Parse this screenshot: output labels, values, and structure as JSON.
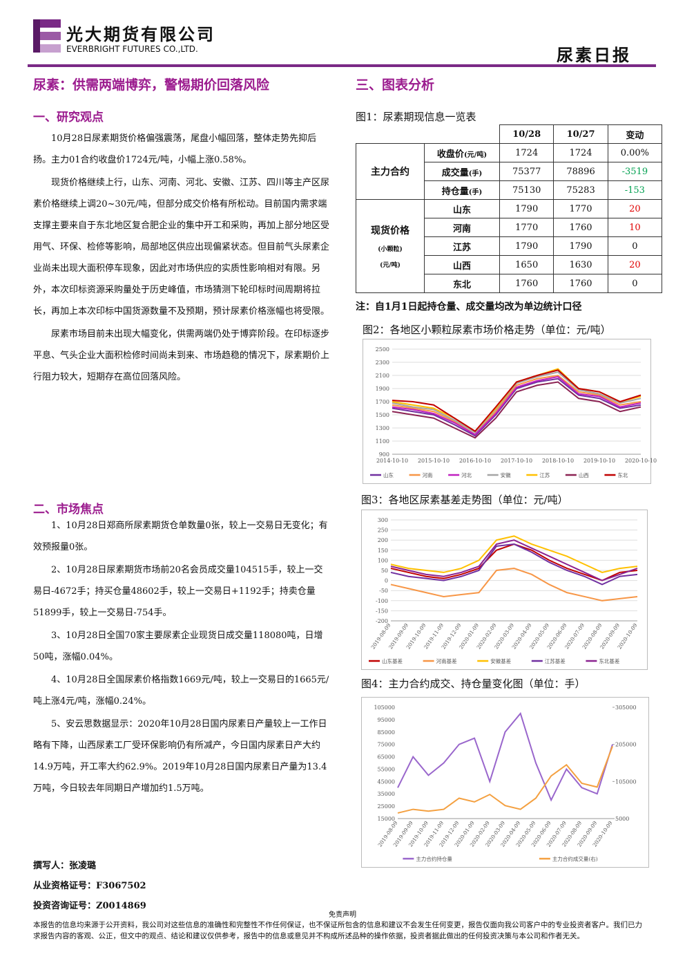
{
  "header": {
    "company_cn": "光大期货有限公司",
    "company_en": "EVERBRIGHT FUTURES CO.,LTD.",
    "report_name": "尿素日报"
  },
  "title": "尿素：供需两端博弈，警惕期价回落风险",
  "section3_title": "三、图表分析",
  "section1": {
    "heading": "一、研究观点",
    "paragraphs": [
      "10月28日尿素期货价格偏强震荡，尾盘小幅回落，整体走势先抑后扬。主力01合约收盘价1724元/吨，小幅上涨0.58%。",
      "现货价格继续上行，山东、河南、河北、安徽、江苏、四川等主产区尿素价格继续上调20~30元/吨，但部分成交价格有所松动。目前国内需求端支撑主要来自于东北地区复合肥企业的集中开工和采购，再加上部分地区受用气、环保、检修等影响，局部地区供应出现偏紧状态。但目前气头尿素企业尚未出现大面积停车现象，因此对市场供应的实质性影响相对有限。另外，本次印标资源采购量处于历史峰值，市场猜测下轮印标时间周期将拉长，再加上本次印标中国货源数量不及预期，预计尿素价格涨幅也将受限。",
      "尿素市场目前未出现大幅变化，供需两端仍处于博弈阶段。在印标逐步平息、气头企业大面积检修时间尚未到来、市场趋稳的情况下，尿素期价上行阻力较大，短期存在高位回落风险。"
    ]
  },
  "section2": {
    "heading": "二、市场焦点",
    "paragraphs": [
      "1、10月28日郑商所尿素期货仓单数量0张，较上一交易日无变化；有效预报量0张。",
      "2、10月28日尿素期货市场前20名会员成交量104515手，较上一交易日-4672手；持买仓量48602手，较上一交易日+1192手；持卖仓量51899手，较上一交易日-754手。",
      "3、10月28日全国70家主要尿素企业现货日成交量118080吨，日增50吨，涨幅0.04%。",
      "4、10月28日全国尿素价格指数1669元/吨，较上一交易日的1665元/吨上涨4元/吨，涨幅0.24%。",
      "5、安云思数据显示：2020年10月28日国内尿素日产量较上一工作日略有下降，山西尿素工厂受环保影响仍有所减产，今日国内尿素日产大约14.9万吨，开工率大约62.9%。2019年10月28日国内尿素日产量为13.4万吨，今日较去年同期日产增加约1.5万吨。"
    ]
  },
  "authors": [
    "撰写人：张凌璐",
    "从业资格证号：F3067502",
    "投资咨询证号：Z0014869"
  ],
  "table": {
    "caption": "图1：尿素期现信息一览表",
    "columns": [
      "10/28",
      "10/27",
      "变动"
    ],
    "groups": [
      {
        "label": "主力合约",
        "rows": [
          {
            "name": "收盘价",
            "unit": "(元/吨)",
            "values": [
              1724,
              1724
            ],
            "change": "0.00%"
          },
          {
            "name": "成交量",
            "unit": "(手)",
            "values": [
              75377,
              78896
            ],
            "change": -3519
          },
          {
            "name": "持仓量",
            "unit": "(手)",
            "values": [
              75130,
              75283
            ],
            "change": -153
          }
        ]
      },
      {
        "label": "现货价格",
        "notes": [
          "(小颗粒)",
          "(元/吨)"
        ],
        "rows": [
          {
            "name": "山东",
            "values": [
              1790,
              1770
            ],
            "change": 20
          },
          {
            "name": "河南",
            "values": [
              1770,
              1760
            ],
            "change": 10
          },
          {
            "name": "江苏",
            "values": [
              1790,
              1790
            ],
            "change": 0
          },
          {
            "name": "山西",
            "values": [
              1650,
              1630
            ],
            "change": 20
          },
          {
            "name": "东北",
            "values": [
              1760,
              1760
            ],
            "change": 0
          }
        ]
      }
    ],
    "note": "注：自1月1日起持仓量、成交量均改为单边统计口径"
  },
  "figures": [
    {
      "caption": "图2：各地区小颗粒尿素市场价格走势（单位：元/吨）",
      "chart": {
        "type": "line",
        "categories": [
          "2014-10-10",
          null,
          "2015-10-10",
          null,
          "2016-10-10",
          null,
          "2017-10-10",
          null,
          "2018-10-10",
          null,
          "2019-10-10",
          null,
          "2020-10-10"
        ],
        "ylim": [
          900,
          2500
        ],
        "yticks": [
          900,
          1100,
          1300,
          1500,
          1700,
          1900,
          2100,
          2300,
          2500
        ],
        "grid": true,
        "series": [
          {
            "name": "山东",
            "color": "#7030a0",
            "values": [
              1600,
              1550,
              1500,
              1350,
              1180,
              1500,
              1900,
              2000,
              2050,
              1800,
              1750,
              1600,
              1650
            ]
          },
          {
            "name": "河南",
            "color": "#f79646",
            "values": [
              1650,
              1600,
              1550,
              1400,
              1200,
              1550,
              1950,
              2050,
              2100,
              1850,
              1800,
              1650,
              1700
            ]
          },
          {
            "name": "河北",
            "color": "#c020c0",
            "values": [
              1620,
              1580,
              1520,
              1380,
              1200,
              1520,
              1920,
              2020,
              2080,
              1820,
              1780,
              1620,
              1680
            ]
          },
          {
            "name": "安徽",
            "color": "#a5a5a5",
            "values": [
              1680,
              1620,
              1580,
              1420,
              1230,
              1580,
              1980,
              2080,
              2150,
              1880,
              1820,
              1680,
              1750
            ]
          },
          {
            "name": "江苏",
            "color": "#ffc000",
            "values": [
              1700,
              1650,
              1600,
              1450,
              1250,
              1600,
              2000,
              2100,
              2200,
              1900,
              1850,
              1700,
              1780
            ]
          },
          {
            "name": "山西",
            "color": "#8b2252",
            "values": [
              1550,
              1500,
              1450,
              1300,
              1150,
              1450,
              1850,
              1950,
              2000,
              1750,
              1700,
              1550,
              1620
            ]
          },
          {
            "name": "东北",
            "color": "#c00000",
            "values": [
              1720,
              1700,
              1650,
              1450,
              1250,
              1620,
              2000,
              2100,
              2180,
              1900,
              1850,
              1700,
              1800
            ]
          }
        ]
      }
    },
    {
      "caption": "图3：各地区尿素基差走势图（单位：元/吨）",
      "chart": {
        "type": "line",
        "rotate_x_labels": true,
        "categories": [
          "2019-08-09",
          "2019-09-09",
          "2019-10-09",
          "2019-11-09",
          "2019-12-09",
          "2020-01-09",
          "2020-02-09",
          "2020-03-09",
          "2020-04-09",
          "2020-05-09",
          "2020-06-09",
          "2020-07-09",
          "2020-08-09",
          "2020-09-09",
          "2020-10-09"
        ],
        "ylim": [
          -200,
          300
        ],
        "yticks": [
          -200,
          -150,
          -100,
          -50,
          0,
          50,
          100,
          150,
          200,
          250,
          300
        ],
        "grid": true,
        "series": [
          {
            "name": "山东基差",
            "color": "#c00000",
            "values": [
              60,
              40,
              20,
              10,
              30,
              60,
              150,
              180,
              150,
              100,
              60,
              30,
              0,
              40,
              50
            ]
          },
          {
            "name": "河南基差",
            "color": "#f79646",
            "values": [
              -20,
              -40,
              -60,
              -80,
              -70,
              -60,
              50,
              60,
              30,
              -20,
              -60,
              -80,
              -100,
              -90,
              -80
            ]
          },
          {
            "name": "安徽基差",
            "color": "#ffc000",
            "values": [
              80,
              60,
              50,
              40,
              60,
              100,
              200,
              220,
              180,
              150,
              120,
              80,
              40,
              60,
              70
            ]
          },
          {
            "name": "江苏基差",
            "color": "#7030a0",
            "values": [
              40,
              20,
              10,
              0,
              20,
              50,
              170,
              180,
              140,
              90,
              50,
              20,
              -20,
              20,
              30
            ]
          },
          {
            "name": "东北基差",
            "color": "#8b2290",
            "values": [
              70,
              50,
              30,
              20,
              40,
              70,
              180,
              200,
              160,
              120,
              80,
              40,
              0,
              30,
              60
            ]
          }
        ]
      }
    },
    {
      "caption": "图4：主力合约成交、持仓量变化图（单位：手）",
      "chart": {
        "type": "line",
        "rotate_x_labels": true,
        "categories": [
          "2019-08-09",
          "2019-09-09",
          "2019-10-09",
          "2019-11-09",
          "2019-12-09",
          "2020-01-09",
          "2020-02-09",
          "2020-03-09",
          "2020-04-09",
          "2020-05-09",
          "2020-06-09",
          "2020-07-09",
          "2020-08-09",
          "2020-09-09",
          "2020-10-09"
        ],
        "ylim": [
          15000,
          105000
        ],
        "yticks": [
          15000,
          25000,
          35000,
          45000,
          55000,
          65000,
          75000,
          85000,
          95000,
          105000
        ],
        "y2lim": [
          5000,
          305000
        ],
        "y2ticks": [
          5000,
          105000,
          205000,
          305000
        ],
        "grid": false,
        "series": [
          {
            "name": "主力合约持仓量",
            "color": "#9966cc",
            "values": [
              40000,
              65000,
              50000,
              60000,
              75000,
              80000,
              45000,
              85000,
              100000,
              60000,
              30000,
              55000,
              40000,
              35000,
              75000
            ]
          },
          {
            "name": "主力合约成交量(右)",
            "color": "#f4a040",
            "axis": "y2",
            "values": [
              20000,
              30000,
              25000,
              30000,
              60000,
              50000,
              70000,
              40000,
              30000,
              60000,
              120000,
              150000,
              100000,
              90000,
              200000
            ]
          }
        ]
      }
    }
  ],
  "footer": {
    "title": "免责声明",
    "text": "本报告的信息均来源于公开资料，我公司对这些信息的准确性和完整性不作任何保证，也不保证所包含的信息和建议不会发生任何变更，报告仅面向我公司客户中的专业投资者客户。我们已力求报告内容的客观、公正，但文中的观点、结论和建议仅供参考，报告中的信息或意见并不构成所述品种的操作依据，投资者据此做出的任何投资决策与本公司和作者无关。"
  }
}
